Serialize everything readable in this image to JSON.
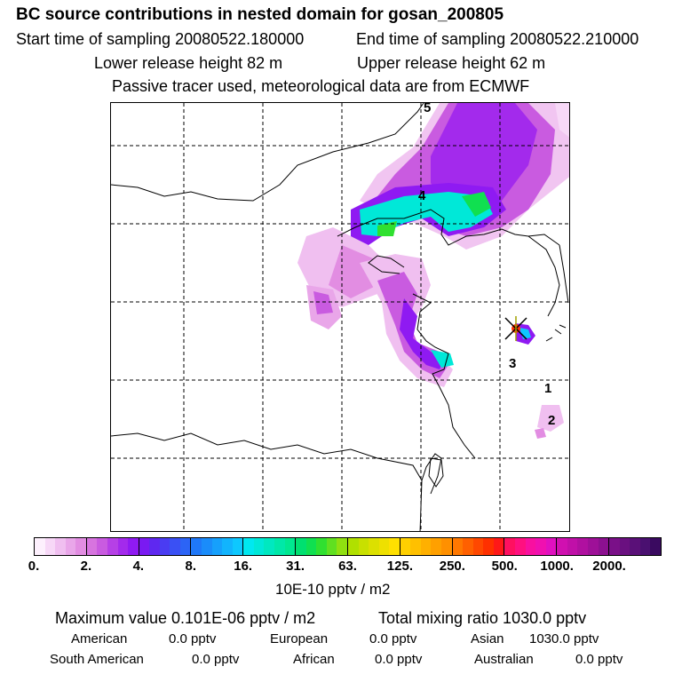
{
  "header": {
    "title": "BC  source contributions in nested domain for gosan_200805",
    "start_time": "Start time of sampling 20080522.180000",
    "end_time": "End time of sampling 20080522.210000",
    "lower_height": "Lower release height   82 m",
    "upper_height": "Upper release height   62 m",
    "tracer_note": "Passive tracer used, meteorological data are from ECMWF"
  },
  "map": {
    "site_numbers": [
      "1",
      "2",
      "3",
      "4",
      "5"
    ]
  },
  "colorbar": {
    "ticks": [
      "0.",
      "2.",
      "4.",
      "8.",
      "16.",
      "31.",
      "63.",
      "125.",
      "250.",
      "500.",
      "1000.",
      "2000."
    ],
    "units": "10E-10 pptv / m2",
    "colors": [
      [
        "#fdf0fd",
        "#f7d8f7",
        "#f0bff0",
        "#e9a6e9",
        "#e28de2"
      ],
      [
        "#d774df",
        "#c95be0",
        "#b640e6",
        "#a32aec",
        "#8f1af2"
      ],
      [
        "#7a1af2",
        "#5f28f0",
        "#4a3cf2",
        "#3a50f4",
        "#2c64f6"
      ],
      [
        "#1f78f8",
        "#1a8cfa",
        "#16a0fc",
        "#12b4fd",
        "#0ec8fe"
      ],
      [
        "#00e8f0",
        "#00e8d8",
        "#00e8c0",
        "#00e8a8",
        "#00e890"
      ],
      [
        "#00e070",
        "#10e050",
        "#30e030",
        "#60e020",
        "#90e010"
      ],
      [
        "#b0e000",
        "#c8e000",
        "#dce000",
        "#eee000",
        "#ffe000"
      ],
      [
        "#ffd000",
        "#ffc000",
        "#ffb000",
        "#ffa000",
        "#ff9000"
      ],
      [
        "#ff7800",
        "#ff6000",
        "#ff4800",
        "#ff3000",
        "#ff1818"
      ],
      [
        "#ff1060",
        "#ff1080",
        "#f810a0",
        "#f010b0",
        "#e010c0"
      ],
      [
        "#d010b0",
        "#c010a8",
        "#b010a0",
        "#9e1098",
        "#8c1090"
      ],
      [
        "#7a1088",
        "#6a1080",
        "#5a1078",
        "#4a1070",
        "#3a0a60"
      ]
    ]
  },
  "stats": {
    "max_value": "Maximum value  0.101E-06 pptv / m2",
    "total_mixing": "Total mixing ratio      1030.0 pptv",
    "american": "American",
    "american_val": "0.0 pptv",
    "european": "European",
    "european_val": "0.0 pptv",
    "asian": "Asian",
    "asian_val": "1030.0 pptv",
    "south_american": "South American",
    "south_american_val": "0.0 pptv",
    "african": "African",
    "african_val": "0.0 pptv",
    "australian": "Australian",
    "australian_val": "0.0 pptv"
  }
}
